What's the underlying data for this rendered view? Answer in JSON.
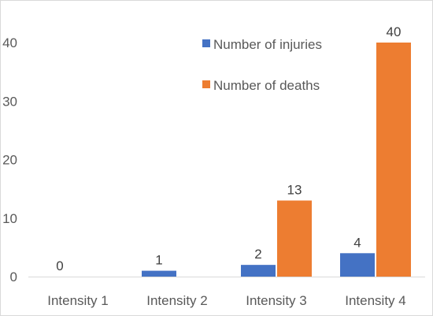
{
  "chart_data": {
    "type": "bar",
    "categories": [
      "Intensity 1",
      "Intensity 2",
      "Intensity 3",
      "Intensity 4"
    ],
    "series": [
      {
        "name": "Number of injuries",
        "values": [
          0,
          1,
          2,
          4
        ],
        "color": "#4472c4"
      },
      {
        "name": "Number of deaths",
        "values": [
          0,
          0,
          13,
          40
        ],
        "color": "#ed7d31"
      }
    ],
    "data_labels": [
      {
        "category_index": 0,
        "series_index": 0,
        "text": "0"
      },
      {
        "category_index": 1,
        "series_index": 0,
        "text": "1"
      },
      {
        "category_index": 2,
        "series_index": 0,
        "text": "2"
      },
      {
        "category_index": 2,
        "series_index": 1,
        "text": "13"
      },
      {
        "category_index": 3,
        "series_index": 0,
        "text": "4"
      },
      {
        "category_index": 3,
        "series_index": 1,
        "text": "40"
      }
    ],
    "yticks": [
      "0",
      "10",
      "20",
      "30",
      "40"
    ],
    "ylim": [
      0,
      40
    ],
    "grid": false,
    "legend_position": "top-right, inside plot",
    "title": "",
    "xlabel": "",
    "ylabel": ""
  }
}
